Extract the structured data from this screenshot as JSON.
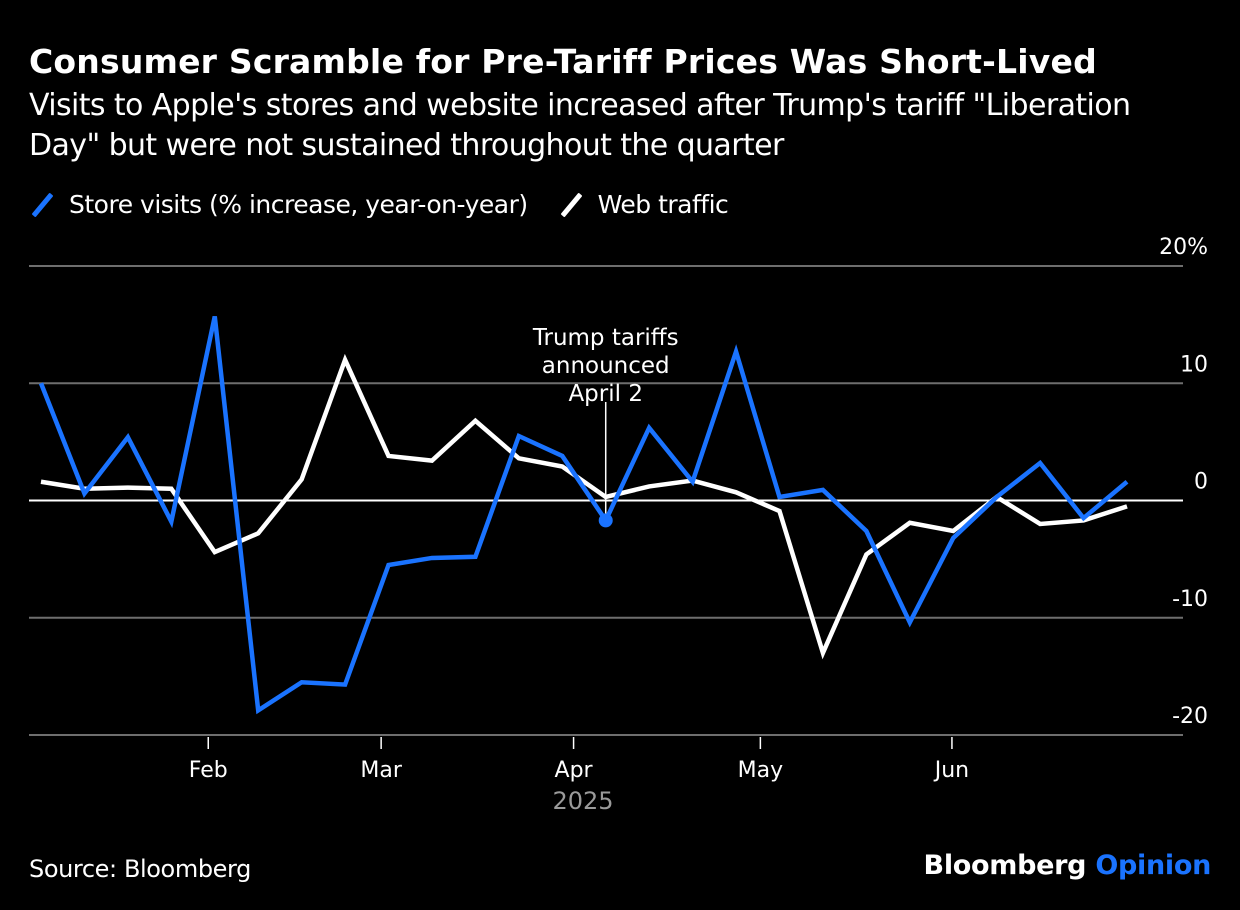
{
  "header": {
    "title": "Consumer Scramble for Pre-Tariff Prices Was Short-Lived",
    "subtitle": "Visits to Apple's stores and website increased after Trump's tariff \"Liberation Day\" but were not sustained throughout the quarter"
  },
  "legend": [
    {
      "label": "Store visits (% increase, year-on-year)",
      "color": "#1a73ff"
    },
    {
      "label": "Web traffic",
      "color": "#ffffff"
    }
  ],
  "footer": {
    "source": "Source: Bloomberg",
    "brand_name": "Bloomberg",
    "brand_product": "Opinion"
  },
  "chart_data": {
    "type": "line",
    "title": "Consumer Scramble for Pre-Tariff Prices Was Short-Lived",
    "subtitle": "Visits to Apple's stores and website increased after Trump's tariff \"Liberation Day\" but were not sustained throughout the quarter",
    "xlabel": "2025",
    "ylabel": "",
    "ylim": [
      -20,
      20
    ],
    "yticks": [
      20,
      10,
      0,
      -10,
      -20
    ],
    "ytick_labels": [
      "20%",
      "10",
      "0",
      "-10",
      "-20"
    ],
    "y_axis_side": "right",
    "grid": true,
    "legend_position": "top-left",
    "x_unit": "week index (weekly points, mid-Jan to end of Jun 2025)",
    "xlim": [
      0,
      25
    ],
    "x_months": [
      {
        "label": "Feb",
        "x": 3.85
      },
      {
        "label": "Mar",
        "x": 7.83
      },
      {
        "label": "Apr",
        "x": 12.26
      },
      {
        "label": "May",
        "x": 16.56
      },
      {
        "label": "Jun",
        "x": 20.97
      }
    ],
    "x": [
      0,
      1,
      2,
      3,
      4,
      5,
      6,
      7,
      8,
      9,
      10,
      11,
      12,
      13,
      14,
      15,
      16,
      17,
      18,
      19,
      20,
      21,
      22,
      23,
      24,
      25
    ],
    "series": [
      {
        "name": "Store visits (% increase, year-on-year)",
        "color": "#1a73ff",
        "values": [
          10.0,
          0.6,
          5.4,
          -1.8,
          15.7,
          -17.9,
          -15.5,
          -15.7,
          -5.5,
          -4.9,
          -4.8,
          5.5,
          3.8,
          -1.7,
          6.2,
          1.6,
          12.7,
          0.3,
          0.9,
          -2.6,
          -10.4,
          -3.2,
          0.3,
          3.2,
          -1.5,
          1.6
        ]
      },
      {
        "name": "Web traffic",
        "color": "#ffffff",
        "values": [
          1.6,
          1.0,
          1.1,
          1.0,
          -4.4,
          -2.8,
          1.8,
          12.0,
          3.8,
          3.4,
          6.8,
          3.6,
          2.9,
          0.3,
          1.2,
          1.7,
          0.7,
          -0.9,
          -13.0,
          -4.6,
          -1.9,
          -2.6,
          0.3,
          -2.0,
          -1.7,
          -0.5
        ]
      }
    ],
    "annotations": [
      {
        "text_lines": [
          "Trump tariffs",
          "announced",
          "April 2"
        ],
        "x": 13,
        "series": "Store visits (% increase, year-on-year)",
        "marker": "dot"
      }
    ]
  }
}
